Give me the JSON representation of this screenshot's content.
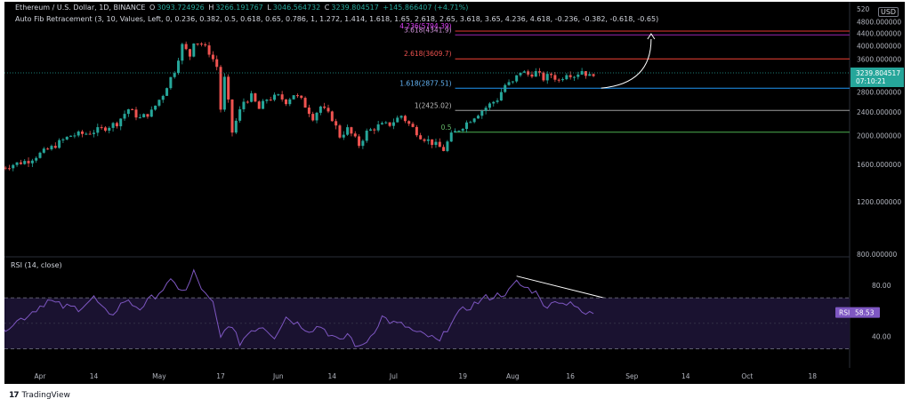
{
  "header": {
    "symbol": "Ethereum / U.S. Dollar, 1D, BINANCE",
    "o_label": "O",
    "o_value": "3093.724926",
    "h_label": "H",
    "h_value": "3266.191767",
    "l_label": "L",
    "l_value": "3046.564732",
    "c_label": "C",
    "c_value": "3239.804517",
    "change": "+145.866407 (+4.71%)",
    "indicator": "Auto Fib Retracement (3, 10, Values, Left, 0, 0.236, 0.382, 0.5, 0.618, 0.65, 0.786, 1, 1.272, 1.414, 1.618, 1.65, 2.618, 2.65, 3.618, 3.65, 4.236, 4.618, -0.236, -0.382, -0.618, -0.65)",
    "currency": "USD",
    "price_axis_top_label": "520"
  },
  "chart_data": [
    {
      "type": "candlestick",
      "yscale": "log",
      "ylim": [
        800,
        5200
      ],
      "y_ticks": [
        "4800.000000",
        "4400.000000",
        "4000.000000",
        "3600.000000",
        "3200.000000",
        "2800.000000",
        "2400.000000",
        "2000.000000",
        "1600.000000",
        "1200.000000",
        "800.000000"
      ],
      "y_tick_values": [
        4800,
        4400,
        4000,
        3600,
        3200,
        2800,
        2400,
        2000,
        1600,
        1200,
        800
      ],
      "x_ticks": [
        "Apr",
        "14",
        "May",
        "17",
        "Jun",
        "14",
        "Jul",
        "19",
        "Aug",
        "16",
        "Sep",
        "14",
        "Oct",
        "18"
      ],
      "x_tick_days": [
        0,
        14,
        31,
        47,
        62,
        76,
        92,
        110,
        123,
        138,
        154,
        168,
        184,
        201
      ],
      "start_label": "Apr",
      "last_price": "3239.804517",
      "countdown": "07:10:21",
      "anchors": [
        [
          -10,
          1560
        ],
        [
          -3,
          1650
        ],
        [
          3,
          1820
        ],
        [
          8,
          2000
        ],
        [
          12,
          2030
        ],
        [
          16,
          2100
        ],
        [
          20,
          2200
        ],
        [
          23,
          2450
        ],
        [
          26,
          2280
        ],
        [
          29,
          2400
        ],
        [
          32,
          2750
        ],
        [
          35,
          3300
        ],
        [
          37,
          4000
        ],
        [
          39,
          3700
        ],
        [
          40,
          4150
        ],
        [
          42,
          4050
        ],
        [
          44,
          3800
        ],
        [
          46,
          3400
        ],
        [
          47,
          2450
        ],
        [
          48,
          3100
        ],
        [
          50,
          2050
        ],
        [
          53,
          2600
        ],
        [
          55,
          2700
        ],
        [
          57,
          2450
        ],
        [
          59,
          2650
        ],
        [
          62,
          2700
        ],
        [
          64,
          2600
        ],
        [
          66,
          2750
        ],
        [
          68,
          2620
        ],
        [
          71,
          2300
        ],
        [
          73,
          2500
        ],
        [
          76,
          2280
        ],
        [
          78,
          1990
        ],
        [
          80,
          2100
        ],
        [
          83,
          1860
        ],
        [
          85,
          2050
        ],
        [
          88,
          2150
        ],
        [
          91,
          2180
        ],
        [
          94,
          2330
        ],
        [
          96,
          2180
        ],
        [
          99,
          1990
        ],
        [
          102,
          1890
        ],
        [
          105,
          1790
        ],
        [
          107,
          2000
        ],
        [
          110,
          2150
        ],
        [
          113,
          2320
        ],
        [
          116,
          2480
        ],
        [
          119,
          2650
        ],
        [
          121,
          2950
        ],
        [
          123,
          3000
        ],
        [
          125,
          3280
        ],
        [
          127,
          3200
        ],
        [
          129,
          3250
        ],
        [
          131,
          3100
        ],
        [
          133,
          3200
        ],
        [
          135,
          3050
        ],
        [
          137,
          3250
        ],
        [
          139,
          3180
        ],
        [
          141,
          3300
        ],
        [
          143,
          3150
        ],
        [
          144,
          3240
        ]
      ],
      "fib_levels": [
        {
          "label": "4.236(5794.39)",
          "price": 5794.39,
          "color": "#e53935",
          "text_color": "#e040fb"
        },
        {
          "label": "3.618(4341.9)",
          "price": 4341.9,
          "color": "#9c27b0",
          "text_color": "#ce93d8"
        },
        {
          "label": "2.618(3609.7)",
          "price": 3609.7,
          "color": "#f44336",
          "text_color": "#ef5350"
        },
        {
          "label": "1.618(2877.51)",
          "price": 2877.51,
          "color": "#2196f3",
          "text_color": "#64b5f6"
        },
        {
          "label": "1(2425.02)",
          "price": 2425.02,
          "color": "#9e9e9e",
          "text_color": "#bdbdbd"
        },
        {
          "label": "0.5",
          "price": 2050,
          "color": "#4caf50",
          "text_color": "#66bb6a"
        }
      ],
      "projection_arrow": {
        "from": [
          146,
          2880
        ],
        "to": [
          159,
          4380
        ]
      }
    },
    {
      "type": "line",
      "title": "RSI (14, close)",
      "ylim": [
        20,
        100
      ],
      "y_ticks": [
        "80.00",
        "40.00"
      ],
      "y_tick_values": [
        80,
        40
      ],
      "bands": [
        70,
        30
      ],
      "mid": 50,
      "current_label": "RSI",
      "current_value": "58.53",
      "anchors": [
        [
          -10,
          45
        ],
        [
          -4,
          55
        ],
        [
          2,
          68
        ],
        [
          6,
          63
        ],
        [
          10,
          62
        ],
        [
          14,
          70
        ],
        [
          18,
          55
        ],
        [
          22,
          68
        ],
        [
          26,
          62
        ],
        [
          30,
          72
        ],
        [
          34,
          82
        ],
        [
          38,
          75
        ],
        [
          40,
          90
        ],
        [
          43,
          72
        ],
        [
          45,
          65
        ],
        [
          47,
          38
        ],
        [
          49,
          50
        ],
        [
          52,
          35
        ],
        [
          55,
          45
        ],
        [
          58,
          48
        ],
        [
          61,
          40
        ],
        [
          64,
          55
        ],
        [
          67,
          50
        ],
        [
          70,
          45
        ],
        [
          73,
          48
        ],
        [
          76,
          40
        ],
        [
          78,
          35
        ],
        [
          80,
          42
        ],
        [
          83,
          30
        ],
        [
          86,
          40
        ],
        [
          89,
          55
        ],
        [
          92,
          50
        ],
        [
          95,
          48
        ],
        [
          98,
          42
        ],
        [
          101,
          40
        ],
        [
          104,
          35
        ],
        [
          107,
          52
        ],
        [
          110,
          60
        ],
        [
          113,
          65
        ],
        [
          116,
          70
        ],
        [
          119,
          72
        ],
        [
          122,
          75
        ],
        [
          124,
          82
        ],
        [
          126,
          78
        ],
        [
          128,
          76
        ],
        [
          130,
          72
        ],
        [
          132,
          60
        ],
        [
          134,
          70
        ],
        [
          136,
          65
        ],
        [
          138,
          68
        ],
        [
          140,
          60
        ],
        [
          142,
          57
        ],
        [
          144,
          58.5
        ]
      ],
      "divergence_line": {
        "from": [
          124,
          87
        ],
        "to": [
          152,
          66
        ]
      }
    }
  ]
}
